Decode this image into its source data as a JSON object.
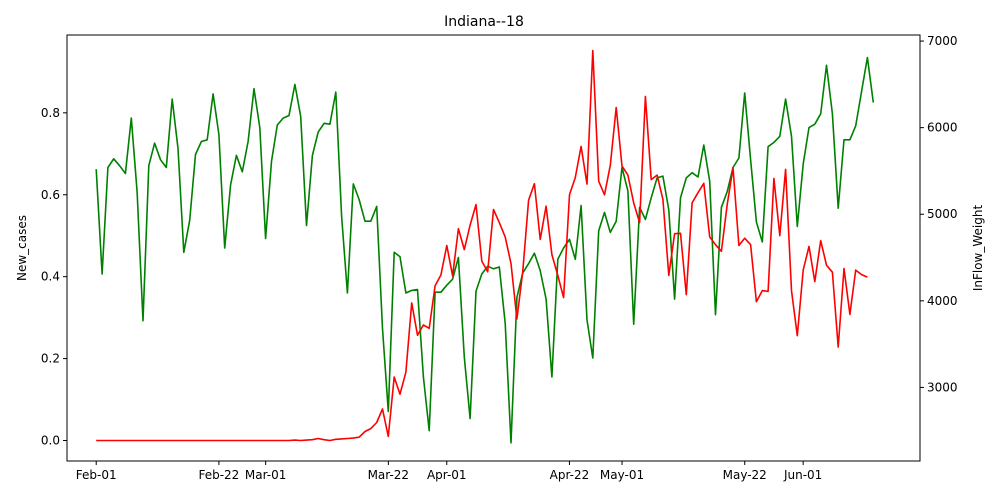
{
  "chart_data": {
    "type": "line",
    "title": "Indiana--18",
    "xlabel": "",
    "ylabel_left": "New_cases",
    "ylabel_right": "InFlow_Weight",
    "x_tick_labels": [
      "Feb-01",
      "Feb-22",
      "Mar-01",
      "Mar-22",
      "Apr-01",
      "Apr-22",
      "May-01",
      "May-22",
      "Jun-01"
    ],
    "x_tick_dates": [
      "2020-02-01",
      "2020-02-22",
      "2020-03-01",
      "2020-03-22",
      "2020-04-01",
      "2020-04-22",
      "2020-05-01",
      "2020-05-22",
      "2020-06-01"
    ],
    "x_range": [
      "2020-01-27",
      "2020-06-21"
    ],
    "ylim_left": [
      -0.05,
      0.99
    ],
    "ylim_right": [
      2150,
      7070
    ],
    "yticks_left": [
      0.0,
      0.2,
      0.4,
      0.6,
      0.8
    ],
    "yticks_right": [
      3000,
      4000,
      5000,
      6000,
      7000
    ],
    "grid": false,
    "series": [
      {
        "axis": "left",
        "color": "#ff0000",
        "start_date": "2020-02-01",
        "values": [
          0,
          0,
          0,
          0,
          0,
          0,
          0,
          0,
          0,
          0,
          0,
          0,
          0,
          0,
          0,
          0,
          0,
          0,
          0,
          0,
          0,
          0,
          0,
          0,
          0,
          0,
          0,
          0,
          0,
          0,
          0,
          0,
          0,
          0,
          0.001,
          0,
          0.001,
          0.002,
          0.005,
          0.002,
          0,
          0.003,
          0.004,
          0.005,
          0.006,
          0.008,
          0.022,
          0.029,
          0.044,
          0.077,
          0.01,
          0.155,
          0.113,
          0.167,
          0.336,
          0.257,
          0.282,
          0.274,
          0.378,
          0.404,
          0.476,
          0.402,
          0.517,
          0.466,
          0.526,
          0.576,
          0.438,
          0.412,
          0.564,
          0.532,
          0.497,
          0.432,
          0.297,
          0.411,
          0.587,
          0.627,
          0.491,
          0.572,
          0.454,
          0.403,
          0.349,
          0.6,
          0.642,
          0.718,
          0.626,
          0.952,
          0.633,
          0.6,
          0.672,
          0.813,
          0.67,
          0.648,
          0.58,
          0.532,
          0.84,
          0.637,
          0.648,
          0.589,
          0.403,
          0.505,
          0.506,
          0.356,
          0.58,
          0.605,
          0.628,
          0.497,
          0.478,
          0.462,
          0.576,
          0.666,
          0.476,
          0.494,
          0.478,
          0.339,
          0.366,
          0.364,
          0.64,
          0.5,
          0.662,
          0.366,
          0.256,
          0.416,
          0.474,
          0.388,
          0.488,
          0.428,
          0.411,
          0.228,
          0.42,
          0.308,
          0.416,
          0.405,
          0.399
        ]
      },
      {
        "axis": "right",
        "color": "#008000",
        "start_date": "2020-02-01",
        "values": [
          5520,
          4310,
          5540,
          5640,
          5560,
          5470,
          6110,
          5260,
          3770,
          5560,
          5820,
          5630,
          5540,
          6330,
          5760,
          4560,
          4930,
          5690,
          5840,
          5860,
          6390,
          5920,
          4610,
          5340,
          5680,
          5490,
          5840,
          6450,
          6000,
          4720,
          5610,
          6030,
          6110,
          6140,
          6500,
          6130,
          4870,
          5680,
          5950,
          6050,
          6040,
          6410,
          4980,
          4090,
          5350,
          5170,
          4920,
          4920,
          5090,
          3680,
          2720,
          4560,
          4510,
          4090,
          4120,
          4130,
          3120,
          2500,
          4100,
          4100,
          4180,
          4250,
          4500,
          3350,
          2640,
          4110,
          4310,
          4400,
          4370,
          4390,
          3740,
          2360,
          4040,
          4320,
          4430,
          4550,
          4350,
          4020,
          3120,
          4480,
          4610,
          4710,
          4480,
          5100,
          3780,
          3340,
          4810,
          5020,
          4790,
          4920,
          5540,
          5270,
          3730,
          5080,
          4940,
          5190,
          5420,
          5440,
          5050,
          4020,
          5190,
          5420,
          5480,
          5430,
          5800,
          5380,
          3840,
          5080,
          5260,
          5540,
          5650,
          6400,
          5630,
          4910,
          4680,
          5780,
          5830,
          5900,
          6330,
          5900,
          4860,
          5580,
          6000,
          6040,
          6160,
          6720,
          6160,
          5070,
          5860,
          5860,
          6020,
          6420,
          6810,
          6290
        ]
      }
    ]
  }
}
